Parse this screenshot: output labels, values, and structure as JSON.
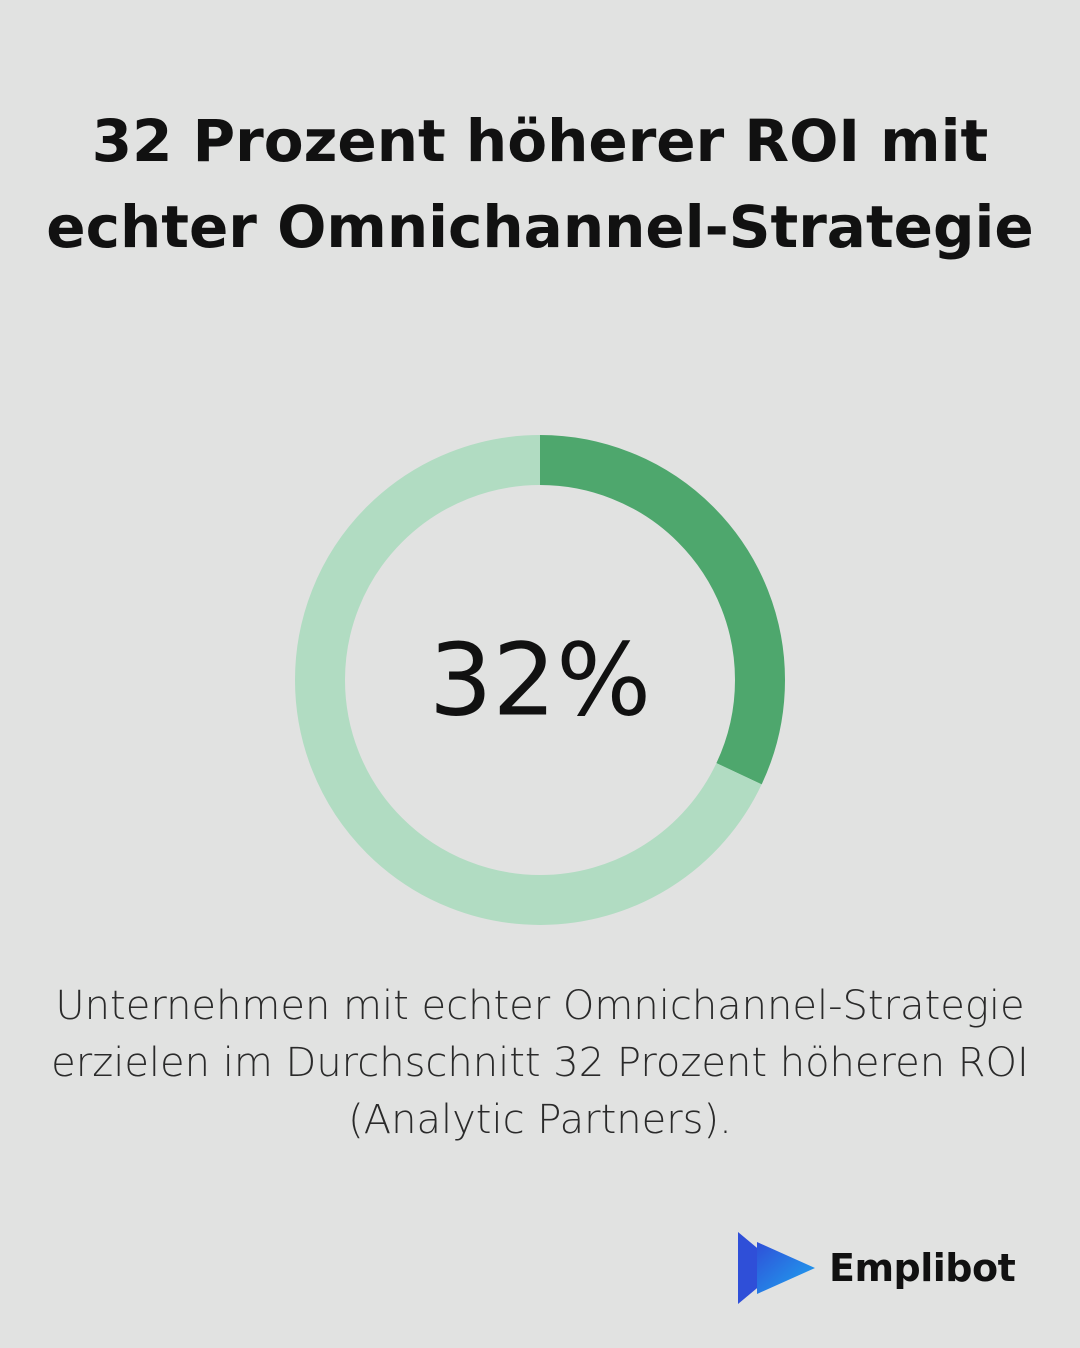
{
  "title": "32 Prozent höherer ROI mit echter Omnichannel-Strategie",
  "chart_data": {
    "type": "pie",
    "variant": "donut",
    "values": [
      32,
      68
    ],
    "center_label": "32%",
    "colors": [
      "#4ea76d",
      "#b1dcc2"
    ]
  },
  "description": "Unternehmen mit echter Omnichannel-Strategie erzielen im Durchschnitt 32 Prozent höheren ROI (Analytic Partners).",
  "brand": {
    "name": "Emplibot",
    "logo_icon": "play-arrows-logo-icon",
    "logo_colors": [
      "#2f4fd8",
      "#1ea7f0"
    ]
  },
  "colors": {
    "background": "#e1e2e1",
    "text": "#111111"
  }
}
